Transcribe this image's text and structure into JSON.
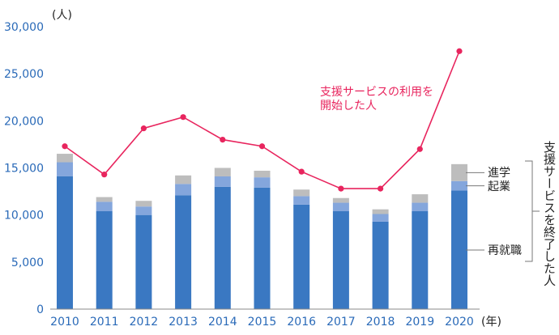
{
  "chart_data": {
    "type": "bar",
    "categories": [
      "2010",
      "2011",
      "2012",
      "2013",
      "2014",
      "2015",
      "2016",
      "2017",
      "2018",
      "2019",
      "2020"
    ],
    "x_unit": "(年)",
    "y_unit": "(人)",
    "ylim": [
      0,
      30000
    ],
    "y_ticks": [
      "0",
      "5,000",
      "10,000",
      "15,000",
      "20,000",
      "25,000",
      "30,000"
    ],
    "grid": false,
    "stacked": true,
    "series": [
      {
        "name": "再就職",
        "kind": "bar",
        "color": "#3a78c2",
        "values": [
          14100,
          10400,
          10000,
          12100,
          13000,
          12900,
          11100,
          10400,
          9300,
          10400,
          12600
        ]
      },
      {
        "name": "起業",
        "kind": "bar",
        "color": "#84a6dc",
        "values": [
          1500,
          1000,
          900,
          1200,
          1100,
          1100,
          900,
          900,
          800,
          900,
          1000
        ]
      },
      {
        "name": "進学",
        "kind": "bar",
        "color": "#bdbdbd",
        "values": [
          900,
          500,
          600,
          900,
          900,
          700,
          700,
          500,
          500,
          900,
          1800
        ]
      },
      {
        "name": "支援サービスの利用を開始した人",
        "kind": "line",
        "color": "#e8255e",
        "values": [
          17300,
          14300,
          19200,
          20400,
          18000,
          17300,
          14600,
          12800,
          12800,
          17000,
          27400
        ]
      }
    ],
    "annotation_line1": "支援サービスの利用を",
    "annotation_line2": "開始した人",
    "bracket_label": "支援サービスを終了した人"
  }
}
